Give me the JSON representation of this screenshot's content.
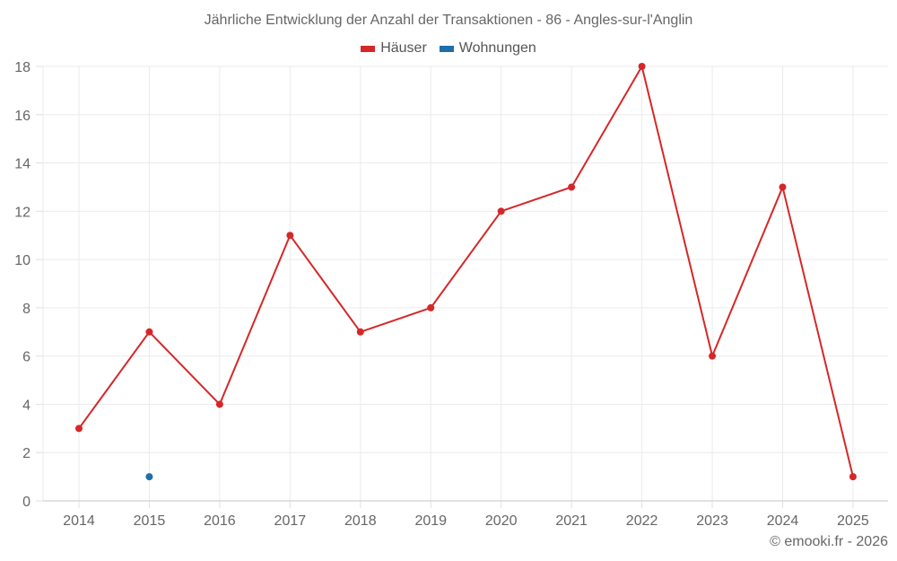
{
  "chart_data": {
    "type": "line",
    "title": "Jährliche Entwicklung der Anzahl der Transaktionen - 86 - Angles-sur-l'Anglin",
    "xlabel": "",
    "ylabel": "",
    "categories": [
      "2014",
      "2015",
      "2016",
      "2017",
      "2018",
      "2019",
      "2020",
      "2021",
      "2022",
      "2023",
      "2024",
      "2025"
    ],
    "ylim": [
      0,
      18
    ],
    "yticks": [
      0,
      2,
      4,
      6,
      8,
      10,
      12,
      14,
      16,
      18
    ],
    "grid": true,
    "legend_position": "top",
    "series": [
      {
        "name": "Häuser",
        "color": "#d62728",
        "values": [
          3,
          7,
          4,
          11,
          7,
          8,
          12,
          13,
          18,
          6,
          13,
          1
        ]
      },
      {
        "name": "Wohnungen",
        "color": "#1f6fa8",
        "values": [
          null,
          1,
          null,
          null,
          null,
          null,
          null,
          null,
          null,
          null,
          null,
          null
        ]
      }
    ]
  },
  "credit": "© emooki.fr - 2026"
}
